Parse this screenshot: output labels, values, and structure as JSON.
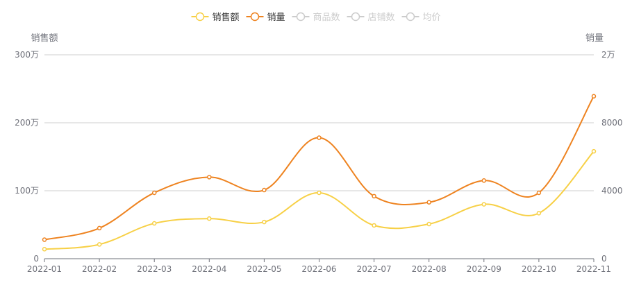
{
  "chart_data": {
    "type": "line",
    "categories": [
      "2022-01",
      "2022-02",
      "2022-03",
      "2022-04",
      "2022-05",
      "2022-06",
      "2022-07",
      "2022-08",
      "2022-09",
      "2022-10",
      "2022-11"
    ],
    "left_axis": {
      "name": "销售额",
      "min": 0,
      "max": 3000000,
      "ticks": [
        0,
        1000000,
        2000000,
        3000000
      ],
      "tick_labels": [
        "0",
        "100万",
        "200万",
        "300万"
      ]
    },
    "right_axis": {
      "name": "销量",
      "min": 0,
      "max": 20000,
      "ticks": [
        0,
        4000,
        8000,
        20000
      ],
      "tick_labels": [
        "0",
        "4000",
        "8000",
        "2万"
      ]
    },
    "legend": [
      {
        "name": "销售额",
        "color": "#f7d046",
        "active": true
      },
      {
        "name": "销量",
        "color": "#ee8320",
        "active": true
      },
      {
        "name": "商品数",
        "color": "#cccccc",
        "active": false
      },
      {
        "name": "店铺数",
        "color": "#cccccc",
        "active": false
      },
      {
        "name": "均价",
        "color": "#cccccc",
        "active": false
      }
    ],
    "series": [
      {
        "name": "销售额",
        "axis": "left",
        "color": "#f7d046",
        "values": [
          140000,
          210000,
          520000,
          590000,
          540000,
          970000,
          490000,
          510000,
          800000,
          670000,
          1580000
        ]
      },
      {
        "name": "销量",
        "axis": "left_scaled",
        "color": "#ee8320",
        "values": [
          280000,
          450000,
          970000,
          1200000,
          1010000,
          1780000,
          920000,
          830000,
          1150000,
          970000,
          2390000
        ]
      }
    ],
    "grid": true,
    "legend_position": "top-center"
  }
}
